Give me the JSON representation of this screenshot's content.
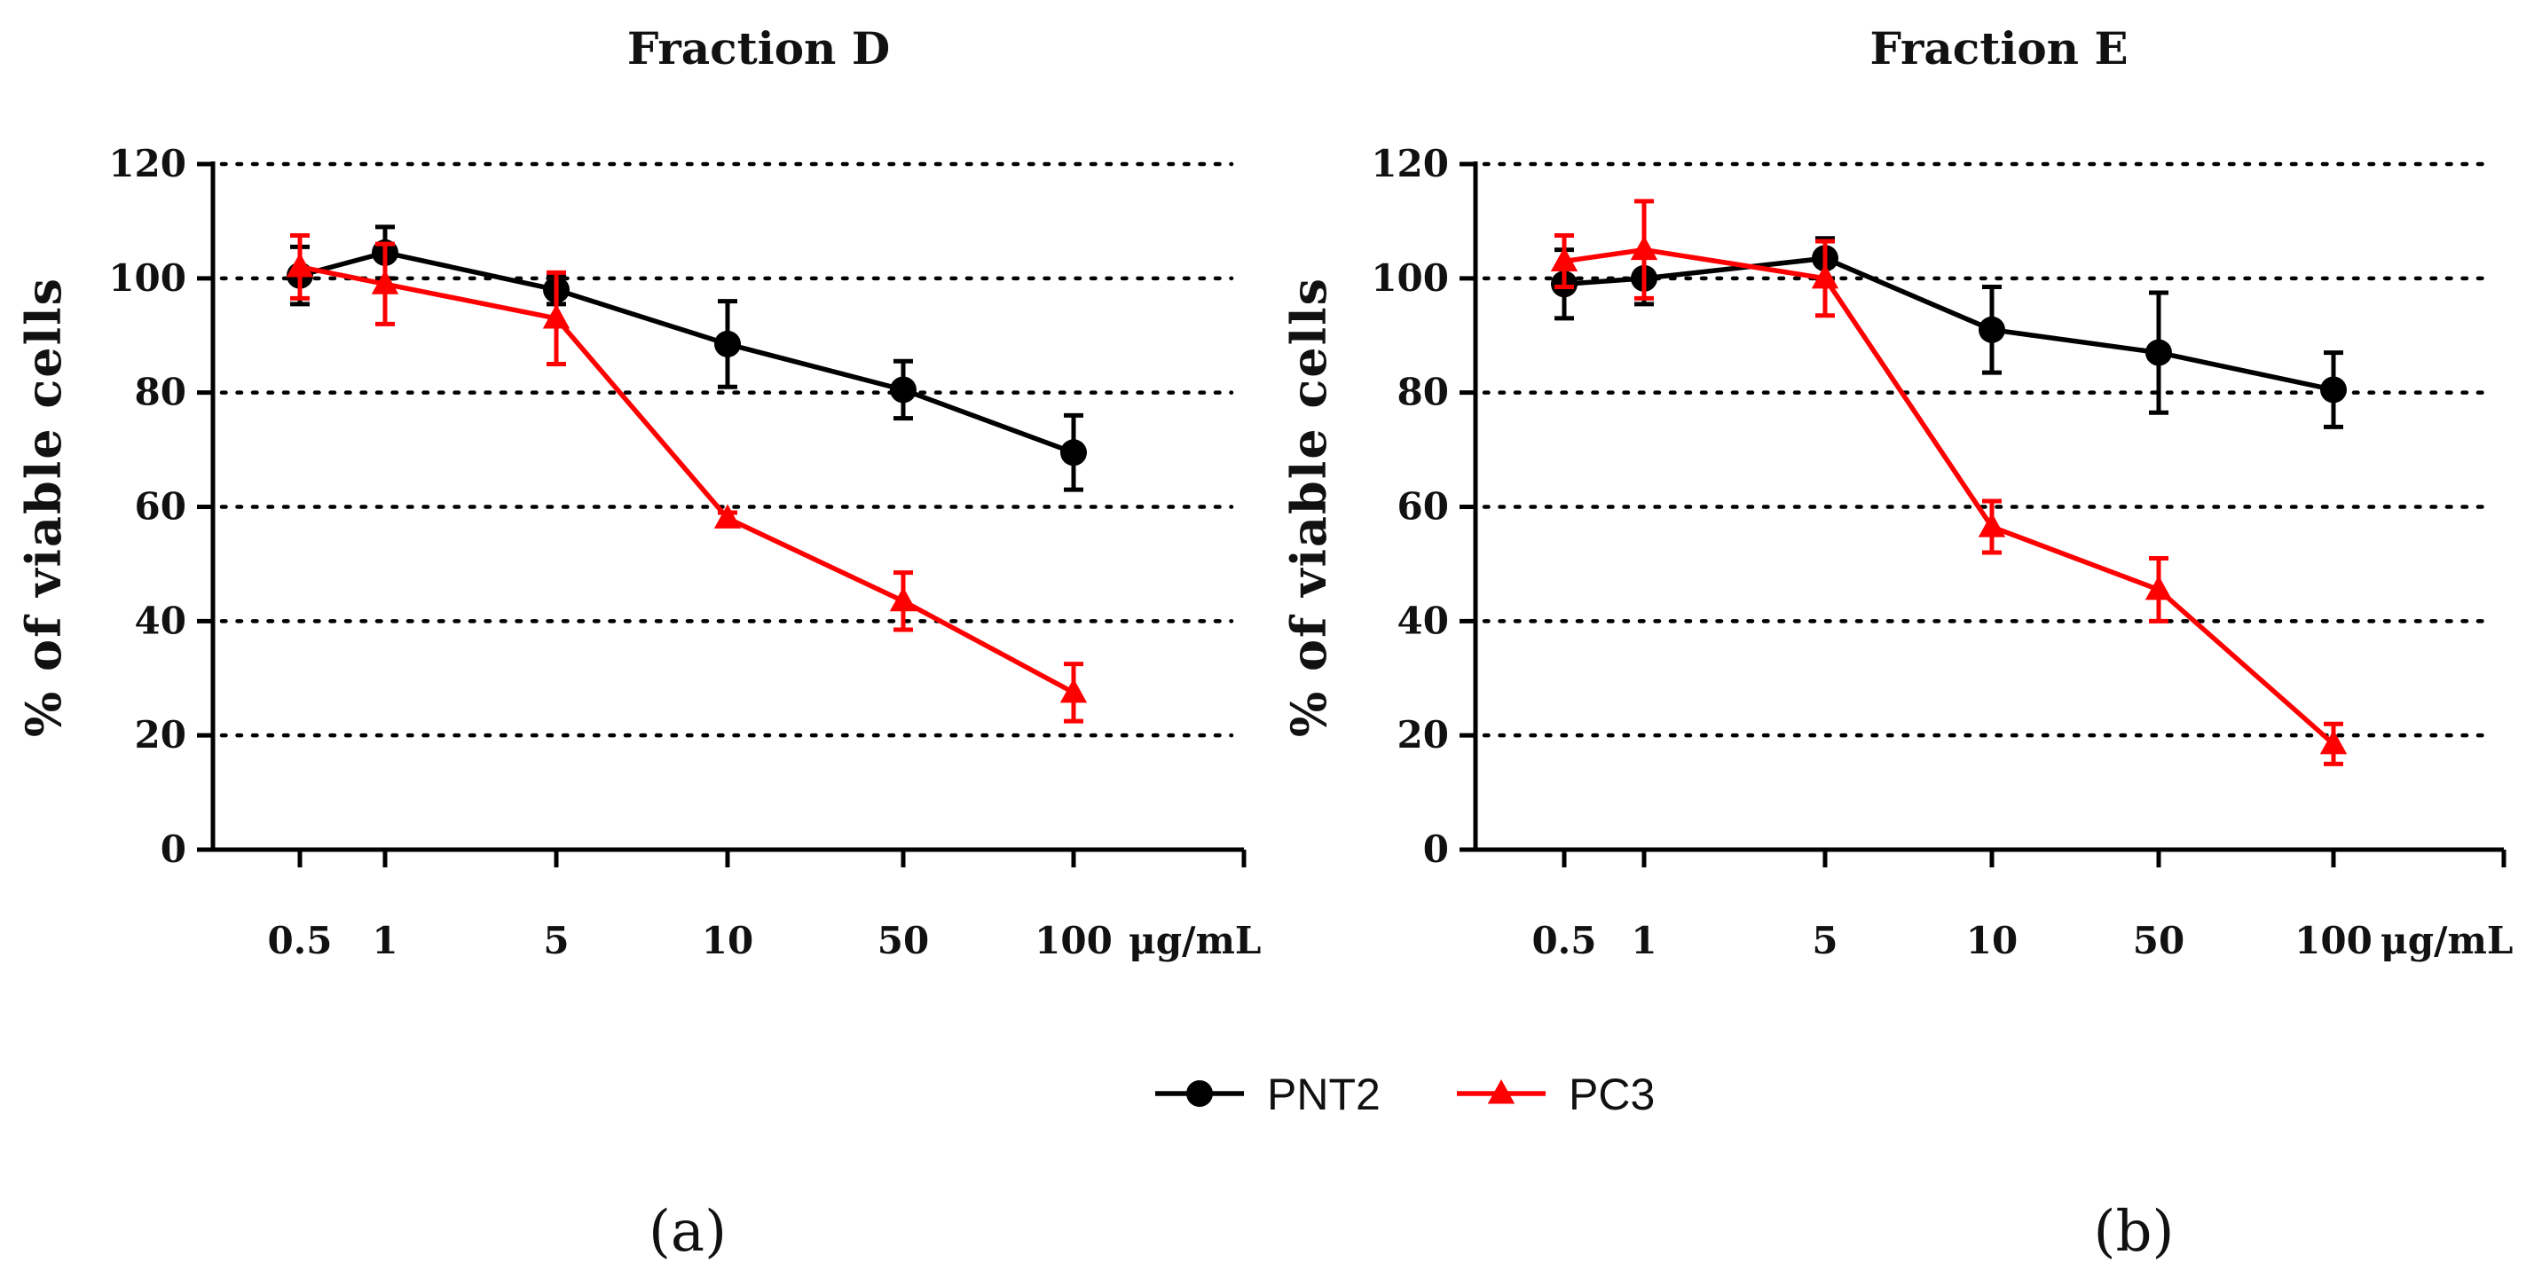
{
  "chart_data": [
    {
      "type": "line",
      "title": "Fraction D",
      "panel_label": "(a)",
      "ylabel": "% of viable cells",
      "xlabel": "μg/mL",
      "categories": [
        "0.5",
        "1",
        "5",
        "10",
        "50",
        "100"
      ],
      "ylim": [
        0,
        120
      ],
      "yticks": [
        "0",
        "20",
        "40",
        "60",
        "80",
        "100",
        "120"
      ],
      "grid": "horizontal dotted",
      "series": [
        {
          "name": "PNT2",
          "color": "#000000",
          "marker": "circle",
          "values": [
            100.5,
            104.5,
            98,
            88.5,
            80.5,
            69.5
          ],
          "errors": [
            5,
            4.5,
            2.5,
            7.5,
            5,
            6.5
          ]
        },
        {
          "name": "PC3",
          "color": "#ff0000",
          "marker": "triangle",
          "values": [
            102,
            99,
            93,
            58,
            43.5,
            27.5
          ],
          "errors": [
            5.5,
            7,
            8,
            1,
            5,
            5
          ]
        }
      ]
    },
    {
      "type": "line",
      "title": "Fraction E",
      "panel_label": "(b)",
      "ylabel": "% of viable cells",
      "xlabel": "μg/mL",
      "categories": [
        "0.5",
        "1",
        "5",
        "10",
        "50",
        "100"
      ],
      "ylim": [
        0,
        120
      ],
      "yticks": [
        "0",
        "20",
        "40",
        "60",
        "80",
        "100",
        "120"
      ],
      "grid": "horizontal dotted",
      "series": [
        {
          "name": "PNT2",
          "color": "#000000",
          "marker": "circle",
          "values": [
            99,
            100,
            103.5,
            91,
            87,
            80.5
          ],
          "errors": [
            6,
            4.5,
            3.5,
            7.5,
            10.5,
            6.5
          ]
        },
        {
          "name": "PC3",
          "color": "#ff0000",
          "marker": "triangle",
          "values": [
            103,
            105,
            100,
            56.5,
            45.5,
            18.5
          ],
          "errors": [
            4.5,
            8.5,
            6.5,
            4.5,
            5.5,
            3.5
          ]
        }
      ]
    }
  ],
  "legend": [
    {
      "name": "PNT2",
      "color": "#000000",
      "marker": "circle"
    },
    {
      "name": "PC3",
      "color": "#ff0000",
      "marker": "triangle"
    }
  ]
}
